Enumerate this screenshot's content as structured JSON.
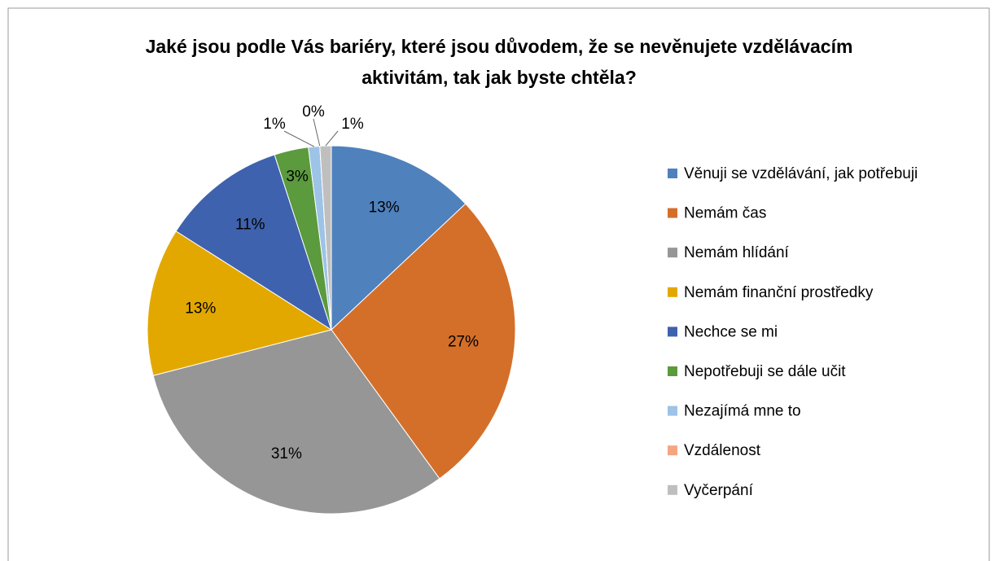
{
  "chart_data": {
    "type": "pie",
    "title": "Jaké jsou podle Vás bariéry, které jsou důvodem, že se nevěnujete vzdělávacím aktivitám, tak jak byste chtěla?",
    "categories": [
      "Věnuji se vzdělávání, jak potřebuji",
      "Nemám čas",
      "Nemám hlídání",
      "Nemám finanční prostředky",
      "Nechce se mi",
      "Nepotřebuji se dále učit",
      "Nezajímá mne to",
      "Vzdálenost",
      "Vyčerpání"
    ],
    "values": [
      13,
      27,
      31,
      13,
      11,
      3,
      1,
      0,
      1
    ],
    "value_labels": [
      "13%",
      "27%",
      "31%",
      "13%",
      "11%",
      "3%",
      "1%",
      "0%",
      "1%"
    ],
    "colors": [
      "#4f81bd",
      "#d46f2a",
      "#969696",
      "#e3a800",
      "#3f62ae",
      "#5b9a3d",
      "#9dc3e6",
      "#f4a582",
      "#bfbfbf"
    ],
    "legend": "right"
  }
}
